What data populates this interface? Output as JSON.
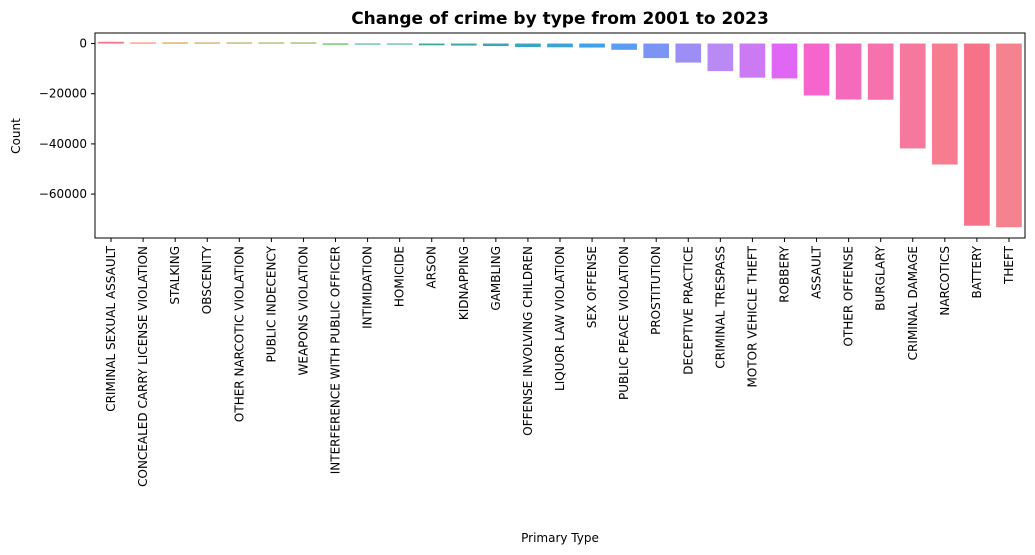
{
  "chart_data": {
    "type": "bar",
    "title": "Change of crime by type from 2001 to 2023",
    "xlabel": "Primary Type",
    "ylabel": "Count",
    "ylim": [
      -77500,
      4200
    ],
    "yticks": [
      0,
      -20000,
      -40000,
      -60000
    ],
    "ytick_labels": [
      "0",
      "−20000",
      "−40000",
      "−60000"
    ],
    "grid": false,
    "categories": [
      "CRIMINAL SEXUAL ASSAULT",
      "CONCEALED CARRY LICENSE VIOLATION",
      "STALKING",
      "OBSCENITY",
      "OTHER NARCOTIC VIOLATION",
      "PUBLIC INDECENCY",
      "WEAPONS VIOLATION",
      "INTERFERENCE WITH PUBLIC OFFICER",
      "INTIMIDATION",
      "HOMICIDE",
      "ARSON",
      "KIDNAPPING",
      "GAMBLING",
      "OFFENSE INVOLVING CHILDREN",
      "LIQUOR LAW VIOLATION",
      "SEX OFFENSE",
      "PUBLIC PEACE VIOLATION",
      "PROSTITUTION",
      "DECEPTIVE PRACTICE",
      "CRIMINAL TRESPASS",
      "MOTOR VEHICLE THEFT",
      "ROBBERY",
      "ASSAULT",
      "OTHER OFFENSE",
      "BURGLARY",
      "CRIMINAL DAMAGE",
      "NARCOTICS",
      "BATTERY",
      "THEFT"
    ],
    "values": [
      700,
      60,
      40,
      10,
      5,
      0,
      0,
      -300,
      -350,
      -400,
      -700,
      -800,
      -1000,
      -1400,
      -1500,
      -1600,
      -2500,
      -5800,
      -7600,
      -11000,
      -13600,
      -13900,
      -20700,
      -22300,
      -22400,
      -41800,
      -48200,
      -72600,
      -73200
    ],
    "colors": [
      "#f77189",
      "#f7754f",
      "#e1861d",
      "#c39532",
      "#ae9d31",
      "#97a431",
      "#77ab31",
      "#33b032",
      "#36ad76",
      "#37aa8d",
      "#38a89d",
      "#39a7ab",
      "#3aa5b8",
      "#3ba3c4",
      "#3ca1d5",
      "#40a0e8",
      "#5a9ef4",
      "#7c95f4",
      "#9c8ef4",
      "#b98af4",
      "#cc7af4",
      "#e066f4",
      "#f565cc",
      "#f56bbb",
      "#f572ad",
      "#f6789e",
      "#f77c90",
      "#f77189",
      "#f4838f"
    ]
  }
}
